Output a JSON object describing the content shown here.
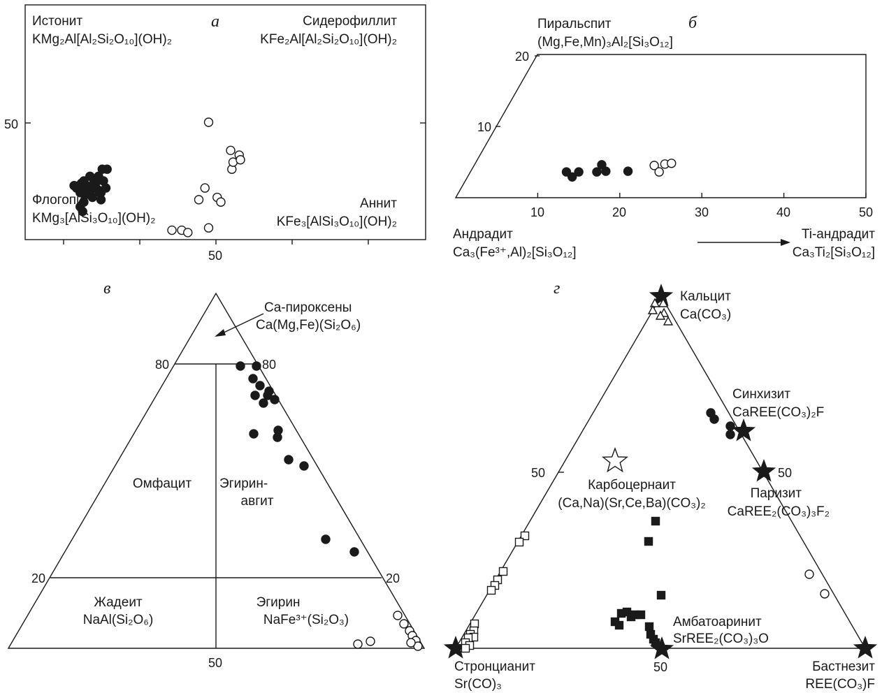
{
  "panels": {
    "a": {
      "letter": "а",
      "tick_y": "50",
      "tick_x": "50",
      "labels": [
        {
          "name": "Истонит",
          "formula": "KMg₂Al[Al₂Si₂O₁₀](OH)₂"
        },
        {
          "name": "Сидерофиллит",
          "formula": "KFe₂Al[Al₂Si₂O₁₀](OH)₂"
        },
        {
          "name": "Флогопит",
          "formula": "KMg₃[AlSi₃O₁₀](OH)₂"
        },
        {
          "name": "Аннит",
          "formula": "KFe₃[AlSi₃O₁₀](OH)₂"
        }
      ]
    },
    "b": {
      "letter": "б",
      "y_ticks": [
        "10",
        "20"
      ],
      "x_ticks": [
        "10",
        "20",
        "30",
        "40",
        "50"
      ],
      "labels": [
        {
          "name": "Пиральспит",
          "formula": "(Mg,Fe,Mn)₃Al₂[Si₃O₁₂]"
        },
        {
          "name": "Андрадит",
          "formula": "Ca₃(Fe³⁺,Al)₂[Si₃O₁₂]"
        },
        {
          "name": "Ti-андрадит",
          "formula": "Ca₃Ti₂[Si₃O₁₂]"
        }
      ]
    },
    "c": {
      "letter": "в",
      "ticks": [
        "80",
        "80",
        "20",
        "20",
        "50"
      ],
      "labels": [
        {
          "name": "Ca-пироксены",
          "formula": "Ca(Mg,Fe)(Si₂O₆)"
        },
        {
          "name": "Омфацит",
          "formula": ""
        },
        {
          "name": "Эгирин-",
          "formula": "авгит"
        },
        {
          "name": "Жадеит",
          "formula": "NaAl(Si₂O₆)"
        },
        {
          "name": "Эгирин",
          "formula": "NaFe³⁺(Si₂O₃)"
        }
      ]
    },
    "d": {
      "letter": "г",
      "ticks": [
        "50",
        "50",
        "50"
      ],
      "labels": [
        {
          "name": "Кальцит",
          "formula": "Ca(CO₃)"
        },
        {
          "name": "Синхизит",
          "formula": "CaREE(CO₃)₂F"
        },
        {
          "name": "Карбоцернаит",
          "formula": "(Ca,Na)(Sr,Ce,Ba)(CO₃)₂"
        },
        {
          "name": "Паризит",
          "formula": "CaREE₂(CO₃)₃F₂"
        },
        {
          "name": "Амбатоаринит",
          "formula": "SrREE₂(CO₃)₃O"
        },
        {
          "name": "Стронцианит",
          "formula": "Sr(CO)₃"
        },
        {
          "name": "Бастнезит",
          "formula": "REE(CO₃)F"
        }
      ]
    }
  },
  "chart_data": [
    {
      "type": "scatter",
      "panel": "a",
      "series": [
        {
          "marker": "filled-circle",
          "points": [
            [
              40,
              23
            ],
            [
              42,
              22
            ],
            [
              44,
              23
            ],
            [
              45,
              20
            ],
            [
              46,
              24
            ],
            [
              45,
              14
            ],
            [
              47,
              12
            ],
            [
              48,
              16
            ],
            [
              49,
              19
            ],
            [
              47,
              22
            ],
            [
              48,
              25
            ],
            [
              50,
              23
            ],
            [
              51,
              20
            ],
            [
              52,
              22
            ],
            [
              53,
              27
            ],
            [
              54,
              21
            ],
            [
              55,
              18
            ],
            [
              56,
              24
            ],
            [
              57,
              25
            ],
            [
              58,
              22
            ],
            [
              59,
              25
            ],
            [
              60,
              21
            ],
            [
              61,
              20
            ],
            [
              62,
              20
            ],
            [
              64,
              25
            ],
            [
              66,
              22
            ],
            [
              60,
              27
            ],
            [
              63,
              30
            ],
            [
              67,
              30
            ],
            [
              62,
              17
            ]
          ]
        },
        {
          "marker": "open-circle",
          "points": [
            [
              150,
              50
            ],
            [
              120,
              4
            ],
            [
              128,
              4
            ],
            [
              133,
              3
            ],
            [
              150,
              5
            ],
            [
              142,
              17
            ],
            [
              147,
              22
            ],
            [
              157,
              18
            ],
            [
              160,
              16
            ],
            [
              168,
              38
            ],
            [
              169,
              30
            ],
            [
              170,
              33
            ],
            [
              175,
              36
            ],
            [
              176,
              34
            ]
          ]
        }
      ]
    },
    {
      "type": "scatter",
      "panel": "b",
      "x_axis_range": [
        0,
        50
      ],
      "y_axis_range": [
        0,
        20
      ],
      "series": [
        {
          "marker": "filled-circle",
          "points": [
            [
              13.5,
              3.6
            ],
            [
              14.2,
              2.9
            ],
            [
              15.0,
              3.6
            ],
            [
              17.2,
              3.6
            ],
            [
              17.8,
              4.6
            ],
            [
              18.3,
              3.7
            ],
            [
              21.0,
              3.7
            ]
          ]
        },
        {
          "marker": "open-circle",
          "points": [
            [
              24.2,
              4.5
            ],
            [
              24.8,
              3.6
            ],
            [
              25.5,
              4.7
            ],
            [
              26.3,
              4.8
            ]
          ]
        }
      ]
    },
    {
      "type": "scatter",
      "panel": "c",
      "series": [
        {
          "marker": "filled-circle",
          "points": [
            [
              344,
              524
            ],
            [
              367,
              524
            ],
            [
              362,
              542
            ],
            [
              372,
              552
            ],
            [
              385,
              560
            ],
            [
              365,
              566
            ],
            [
              383,
              566
            ],
            [
              377,
              577
            ],
            [
              393,
              572
            ],
            [
              398,
              616
            ],
            [
              363,
              621
            ],
            [
              397,
              626
            ],
            [
              413,
              658
            ],
            [
              435,
              667
            ],
            [
              466,
              772
            ],
            [
              507,
              790
            ]
          ]
        },
        {
          "marker": "open-circle",
          "points": [
            [
              569,
              881
            ],
            [
              578,
              893
            ],
            [
              586,
              903
            ],
            [
              590,
              910
            ],
            [
              595,
              917
            ],
            [
              598,
              925
            ],
            [
              588,
              920
            ],
            [
              512,
              922
            ],
            [
              530,
              918
            ]
          ]
        }
      ]
    },
    {
      "type": "scatter",
      "panel": "d",
      "series": [
        {
          "marker": "filled-star",
          "points": [
            [
              946,
              424
            ],
            [
              1064,
              617
            ],
            [
              1093,
              675
            ],
            [
              652,
              928
            ],
            [
              947,
              929
            ],
            [
              1238,
              928
            ]
          ]
        },
        {
          "marker": "open-star",
          "points": [
            [
              880,
              660
            ]
          ]
        },
        {
          "marker": "open-triangle",
          "points": [
            [
              937,
              434
            ],
            [
              949,
              434
            ],
            [
              934,
              444
            ],
            [
              950,
              448
            ],
            [
              945,
              452
            ],
            [
              956,
              460
            ]
          ]
        },
        {
          "marker": "filled-circle",
          "points": [
            [
              1017,
              591
            ],
            [
              1022,
              600
            ],
            [
              1045,
              610
            ],
            [
              1045,
              622
            ]
          ]
        },
        {
          "marker": "open-circle",
          "points": [
            [
              1158,
              822
            ],
            [
              1180,
              850
            ]
          ]
        },
        {
          "marker": "filled-square",
          "points": [
            [
              938,
              746
            ],
            [
              928,
              775
            ],
            [
              946,
              852
            ],
            [
              889,
              878
            ],
            [
              897,
              876
            ],
            [
              903,
              883
            ],
            [
              908,
              880
            ],
            [
              917,
              880
            ],
            [
              880,
              890
            ],
            [
              886,
              895
            ],
            [
              929,
              897
            ],
            [
              931,
              908
            ],
            [
              935,
              915
            ],
            [
              938,
              920
            ]
          ]
        },
        {
          "marker": "open-square",
          "points": [
            [
              751,
              767
            ],
            [
              743,
              776
            ],
            [
              720,
              818
            ],
            [
              712,
              830
            ],
            [
              708,
              838
            ],
            [
              703,
              845
            ],
            [
              679,
              893
            ],
            [
              678,
              903
            ],
            [
              673,
              908
            ],
            [
              678,
              912
            ],
            [
              670,
              913
            ],
            [
              666,
              920
            ],
            [
              672,
              924
            ],
            [
              666,
              928
            ]
          ]
        }
      ]
    }
  ]
}
